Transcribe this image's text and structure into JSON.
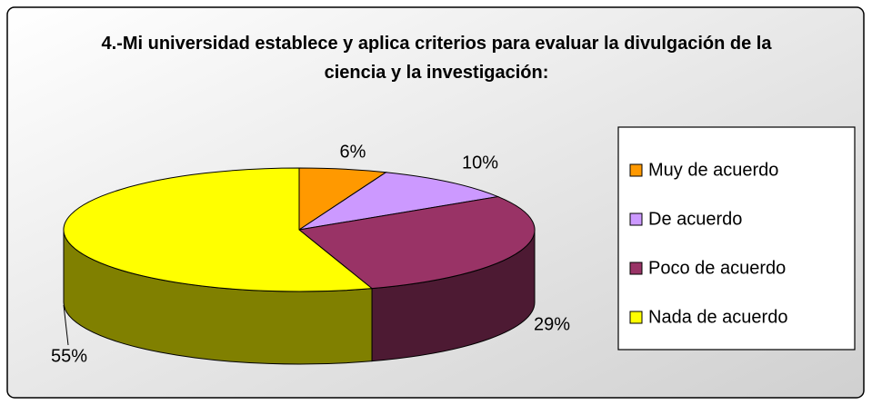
{
  "chart_data": {
    "type": "pie",
    "title": "4.-Mi universidad establece y aplica criterios para evaluar la divulgación de la ciencia y la investigación:",
    "categories": [
      "Muy de acuerdo",
      "De acuerdo",
      "Poco de acuerdo",
      "Nada de acuerdo"
    ],
    "values": [
      6,
      10,
      29,
      55
    ],
    "value_labels": [
      "6%",
      "10%",
      "29%",
      "55%"
    ],
    "colors": [
      "#FF9900",
      "#CC99FF",
      "#993366",
      "#FFFF00"
    ],
    "legend": "right"
  }
}
